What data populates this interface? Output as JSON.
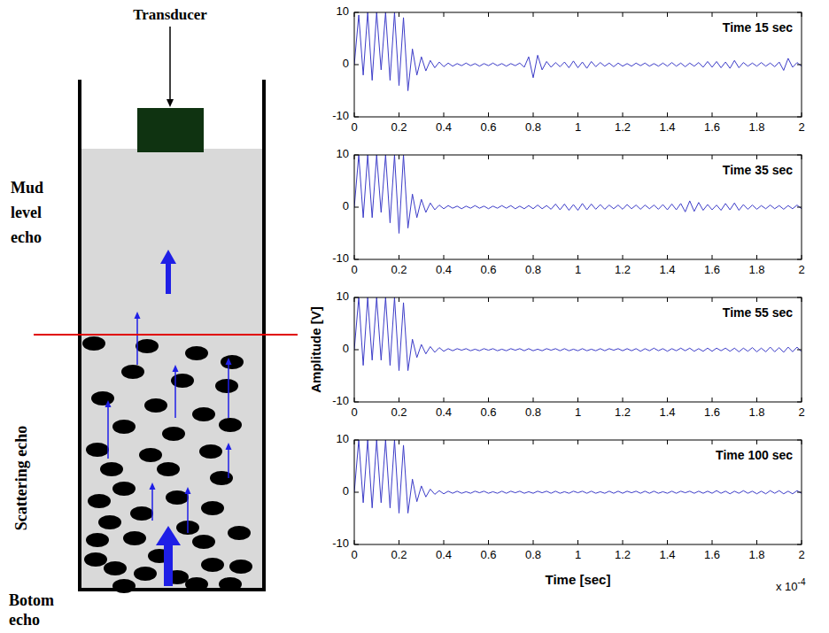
{
  "diagram": {
    "transducer": "Transducer",
    "mud_level": "Mud level echo",
    "scattering": "Scattering echo",
    "bottom": "Botom echo"
  },
  "figure": {
    "ylabel": "Amplitude [V]",
    "x_multiplier": "x 10",
    "x_multiplier_exponent": "-4"
  },
  "chart_data": [
    {
      "type": "line",
      "title": "Time 15 sec",
      "color": "#3c3cc8",
      "x": [
        0,
        0.02,
        0.04,
        0.06,
        0.08,
        0.1,
        0.12,
        0.14,
        0.16,
        0.18,
        0.2,
        0.22,
        0.24,
        0.26,
        0.28,
        0.3,
        0.32,
        0.34,
        0.36,
        0.38,
        0.4,
        0.42,
        0.44,
        0.46,
        0.48,
        0.5,
        0.52,
        0.54,
        0.56,
        0.58,
        0.6,
        0.62,
        0.64,
        0.66,
        0.68,
        0.7,
        0.72,
        0.74,
        0.76,
        0.78,
        0.8,
        0.82,
        0.84,
        0.86,
        0.88,
        0.9,
        0.92,
        0.94,
        0.96,
        0.98,
        1,
        1.02,
        1.04,
        1.06,
        1.08,
        1.1,
        1.12,
        1.14,
        1.16,
        1.18,
        1.2,
        1.22,
        1.24,
        1.26,
        1.28,
        1.3,
        1.32,
        1.34,
        1.36,
        1.38,
        1.4,
        1.42,
        1.44,
        1.46,
        1.48,
        1.5,
        1.52,
        1.54,
        1.56,
        1.58,
        1.6,
        1.62,
        1.64,
        1.66,
        1.68,
        1.7,
        1.72,
        1.74,
        1.76,
        1.78,
        1.8,
        1.82,
        1.84,
        1.86,
        1.88,
        1.9,
        1.92,
        1.94,
        1.96,
        1.98,
        2
      ],
      "values": [
        0,
        9.5,
        -2,
        10,
        -3,
        10,
        -1,
        10,
        -3,
        10,
        -4,
        9,
        -5,
        3,
        -2,
        1.5,
        -1.2,
        0.8,
        -0.6,
        0.5,
        -0.4,
        0.3,
        -0.3,
        0.2,
        -0.2,
        0.3,
        -0.2,
        0.2,
        -0.3,
        0.2,
        -0.2,
        0.3,
        -0.2,
        0.2,
        -0.3,
        0.2,
        -0.2,
        0.3,
        -0.5,
        1.5,
        -2.5,
        1.8,
        -1,
        0.6,
        -0.5,
        0.4,
        -0.4,
        0.5,
        -0.6,
        0.7,
        -0.6,
        0.5,
        -0.7,
        0.6,
        -0.4,
        0.4,
        -0.3,
        0.3,
        -0.4,
        0.3,
        -0.3,
        0.2,
        -0.3,
        0.3,
        -0.2,
        0.3,
        -0.3,
        0.2,
        -0.3,
        0.3,
        -0.3,
        0.4,
        -0.3,
        0.3,
        -0.4,
        0.3,
        -0.3,
        0.4,
        -0.5,
        0.6,
        -0.5,
        0.6,
        -0.6,
        0.5,
        -0.7,
        0.8,
        -0.6,
        0.4,
        -0.3,
        0.3,
        -0.3,
        0.4,
        -0.3,
        0.3,
        -0.4,
        0.5,
        -1.1,
        1.2,
        -0.5,
        0.4,
        -0.3
      ],
      "xlim": [
        0,
        2
      ],
      "xticks": [
        0,
        0.2,
        0.4,
        0.6,
        0.8,
        1,
        1.2,
        1.4,
        1.6,
        1.8,
        2
      ],
      "ylim": [
        -10,
        10
      ],
      "yticks": [
        -10,
        0,
        10
      ]
    },
    {
      "type": "line",
      "title": "Time 35 sec",
      "color": "#3c3cc8",
      "x": [
        0,
        0.02,
        0.04,
        0.06,
        0.08,
        0.1,
        0.12,
        0.14,
        0.16,
        0.18,
        0.2,
        0.22,
        0.24,
        0.26,
        0.28,
        0.3,
        0.32,
        0.34,
        0.36,
        0.38,
        0.4,
        0.42,
        0.44,
        0.46,
        0.48,
        0.5,
        0.52,
        0.54,
        0.56,
        0.58,
        0.6,
        0.62,
        0.64,
        0.66,
        0.68,
        0.7,
        0.72,
        0.74,
        0.76,
        0.78,
        0.8,
        0.82,
        0.84,
        0.86,
        0.88,
        0.9,
        0.92,
        0.94,
        0.96,
        0.98,
        1,
        1.02,
        1.04,
        1.06,
        1.08,
        1.1,
        1.12,
        1.14,
        1.16,
        1.18,
        1.2,
        1.22,
        1.24,
        1.26,
        1.28,
        1.3,
        1.32,
        1.34,
        1.36,
        1.38,
        1.4,
        1.42,
        1.44,
        1.46,
        1.48,
        1.5,
        1.52,
        1.54,
        1.56,
        1.58,
        1.6,
        1.62,
        1.64,
        1.66,
        1.68,
        1.7,
        1.72,
        1.74,
        1.76,
        1.78,
        1.8,
        1.82,
        1.84,
        1.86,
        1.88,
        1.9,
        1.92,
        1.94,
        1.96,
        1.98,
        2
      ],
      "values": [
        0,
        10,
        -2,
        10,
        -2,
        10,
        -1,
        10,
        -3,
        10,
        -5,
        10,
        -4,
        2.5,
        -2,
        1.5,
        -1,
        0.8,
        -0.5,
        0.4,
        -0.3,
        0.3,
        -0.2,
        0.2,
        -0.3,
        0.2,
        -0.2,
        0.3,
        -0.2,
        0.2,
        -0.3,
        0.2,
        -0.2,
        0.3,
        -0.2,
        0.3,
        -0.3,
        0.2,
        -0.3,
        0.3,
        -0.3,
        0.4,
        -0.3,
        0.3,
        -0.4,
        0.6,
        -0.5,
        0.6,
        -0.6,
        0.5,
        -0.6,
        0.7,
        -0.5,
        0.6,
        -0.4,
        0.5,
        -0.4,
        0.4,
        -0.3,
        0.4,
        -0.4,
        0.5,
        -0.3,
        0.4,
        -0.4,
        0.4,
        -0.3,
        0.4,
        -0.4,
        0.5,
        -0.5,
        0.6,
        -0.5,
        0.7,
        -0.9,
        1.2,
        -0.8,
        0.9,
        -0.6,
        0.5,
        -0.5,
        0.4,
        -0.6,
        0.7,
        -0.5,
        0.8,
        -0.6,
        0.5,
        -0.4,
        0.4,
        -0.4,
        0.3,
        -0.3,
        0.4,
        -0.3,
        0.3,
        -0.4,
        0.3,
        -0.3,
        0.4,
        -0.3
      ],
      "xlim": [
        0,
        2
      ],
      "xticks": [
        0,
        0.2,
        0.4,
        0.6,
        0.8,
        1,
        1.2,
        1.4,
        1.6,
        1.8,
        2
      ],
      "ylim": [
        -10,
        10
      ],
      "yticks": [
        -10,
        0,
        10
      ]
    },
    {
      "type": "line",
      "title": "Time 55 sec",
      "color": "#3c3cc8",
      "x": [
        0,
        0.02,
        0.04,
        0.06,
        0.08,
        0.1,
        0.12,
        0.14,
        0.16,
        0.18,
        0.2,
        0.22,
        0.24,
        0.26,
        0.28,
        0.3,
        0.32,
        0.34,
        0.36,
        0.38,
        0.4,
        0.42,
        0.44,
        0.46,
        0.48,
        0.5,
        0.52,
        0.54,
        0.56,
        0.58,
        0.6,
        0.62,
        0.64,
        0.66,
        0.68,
        0.7,
        0.72,
        0.74,
        0.76,
        0.78,
        0.8,
        0.82,
        0.84,
        0.86,
        0.88,
        0.9,
        0.92,
        0.94,
        0.96,
        0.98,
        1,
        1.02,
        1.04,
        1.06,
        1.08,
        1.1,
        1.12,
        1.14,
        1.16,
        1.18,
        1.2,
        1.22,
        1.24,
        1.26,
        1.28,
        1.3,
        1.32,
        1.34,
        1.36,
        1.38,
        1.4,
        1.42,
        1.44,
        1.46,
        1.48,
        1.5,
        1.52,
        1.54,
        1.56,
        1.58,
        1.6,
        1.62,
        1.64,
        1.66,
        1.68,
        1.7,
        1.72,
        1.74,
        1.76,
        1.78,
        1.8,
        1.82,
        1.84,
        1.86,
        1.88,
        1.9,
        1.92,
        1.94,
        1.96,
        1.98,
        2
      ],
      "values": [
        0,
        10,
        -3,
        10,
        -2,
        10,
        -2,
        10,
        -3,
        10,
        -4,
        9,
        -4,
        2,
        -1.5,
        1,
        -0.8,
        0.6,
        -0.5,
        0.4,
        -0.3,
        0.2,
        -0.2,
        0.2,
        -0.1,
        0.2,
        -0.2,
        0.1,
        -0.2,
        0.2,
        -0.1,
        0.2,
        -0.2,
        0.1,
        -0.2,
        0.2,
        -0.1,
        0.2,
        -0.2,
        0.2,
        -0.2,
        0.1,
        -0.2,
        0.2,
        -0.1,
        0.2,
        -0.2,
        0.2,
        -0.2,
        0.1,
        -0.2,
        0.2,
        -0.2,
        0.1,
        -0.2,
        0.2,
        -0.2,
        0.2,
        -0.1,
        0.2,
        -0.2,
        0.2,
        -0.2,
        0.2,
        -0.3,
        0.2,
        -0.2,
        0.3,
        -0.2,
        0.2,
        -0.3,
        0.2,
        -0.2,
        0.3,
        -0.2,
        0.3,
        -0.3,
        0.2,
        -0.3,
        0.3,
        -0.3,
        0.3,
        -0.2,
        0.3,
        -0.3,
        0.3,
        -0.4,
        0.3,
        -0.3,
        0.4,
        -0.4,
        0.3,
        -0.4,
        0.5,
        -0.4,
        0.4,
        -0.5,
        0.5,
        -0.4,
        0.5,
        -0.4
      ],
      "xlim": [
        0,
        2
      ],
      "xticks": [
        0,
        0.2,
        0.4,
        0.6,
        0.8,
        1,
        1.2,
        1.4,
        1.6,
        1.8,
        2
      ],
      "ylim": [
        -10,
        10
      ],
      "yticks": [
        -10,
        0,
        10
      ]
    },
    {
      "type": "line",
      "title": "Time 100 sec",
      "color": "#3c3cc8",
      "xlabel": "Time [sec]",
      "x": [
        0,
        0.02,
        0.04,
        0.06,
        0.08,
        0.1,
        0.12,
        0.14,
        0.16,
        0.18,
        0.2,
        0.22,
        0.24,
        0.26,
        0.28,
        0.3,
        0.32,
        0.34,
        0.36,
        0.38,
        0.4,
        0.42,
        0.44,
        0.46,
        0.48,
        0.5,
        0.52,
        0.54,
        0.56,
        0.58,
        0.6,
        0.62,
        0.64,
        0.66,
        0.68,
        0.7,
        0.72,
        0.74,
        0.76,
        0.78,
        0.8,
        0.82,
        0.84,
        0.86,
        0.88,
        0.9,
        0.92,
        0.94,
        0.96,
        0.98,
        1,
        1.02,
        1.04,
        1.06,
        1.08,
        1.1,
        1.12,
        1.14,
        1.16,
        1.18,
        1.2,
        1.22,
        1.24,
        1.26,
        1.28,
        1.3,
        1.32,
        1.34,
        1.36,
        1.38,
        1.4,
        1.42,
        1.44,
        1.46,
        1.48,
        1.5,
        1.52,
        1.54,
        1.56,
        1.58,
        1.6,
        1.62,
        1.64,
        1.66,
        1.68,
        1.7,
        1.72,
        1.74,
        1.76,
        1.78,
        1.8,
        1.82,
        1.84,
        1.86,
        1.88,
        1.9,
        1.92,
        1.94,
        1.96,
        1.98,
        2
      ],
      "values": [
        0,
        10,
        -2,
        10,
        -3,
        10,
        -2,
        10,
        -3,
        10,
        -4,
        9,
        -4,
        2.5,
        -1.8,
        1.2,
        -0.9,
        0.6,
        -0.4,
        0.3,
        -0.3,
        0.2,
        -0.2,
        0.2,
        -0.2,
        0.1,
        -0.2,
        0.2,
        -0.1,
        0.2,
        -0.2,
        0.1,
        -0.2,
        0.2,
        -0.2,
        0.2,
        -0.1,
        0.2,
        -0.2,
        0.1,
        -0.2,
        0.2,
        -0.1,
        0.2,
        -0.2,
        0.2,
        -0.2,
        0.1,
        -0.2,
        0.2,
        -0.1,
        0.2,
        -0.2,
        0.2,
        -0.2,
        0.1,
        -0.2,
        0.2,
        -0.2,
        0.2,
        -0.2,
        0.2,
        -0.1,
        0.2,
        -0.2,
        0.2,
        -0.2,
        0.2,
        -0.2,
        0.1,
        -0.2,
        0.2,
        -0.2,
        0.2,
        -0.1,
        0.2,
        -0.2,
        0.2,
        -0.2,
        0.2,
        -0.2,
        0.3,
        -0.2,
        0.2,
        -0.3,
        0.2,
        -0.2,
        0.3,
        -0.2,
        0.2,
        -0.3,
        0.2,
        -0.3,
        0.3,
        -0.2,
        0.3,
        -0.3,
        0.2,
        -0.3,
        0.3,
        -0.2
      ],
      "xlim": [
        0,
        2
      ],
      "xticks": [
        0,
        0.2,
        0.4,
        0.6,
        0.8,
        1,
        1.2,
        1.4,
        1.6,
        1.8,
        2
      ],
      "ylim": [
        -10,
        10
      ],
      "yticks": [
        -10,
        0,
        10
      ]
    }
  ]
}
